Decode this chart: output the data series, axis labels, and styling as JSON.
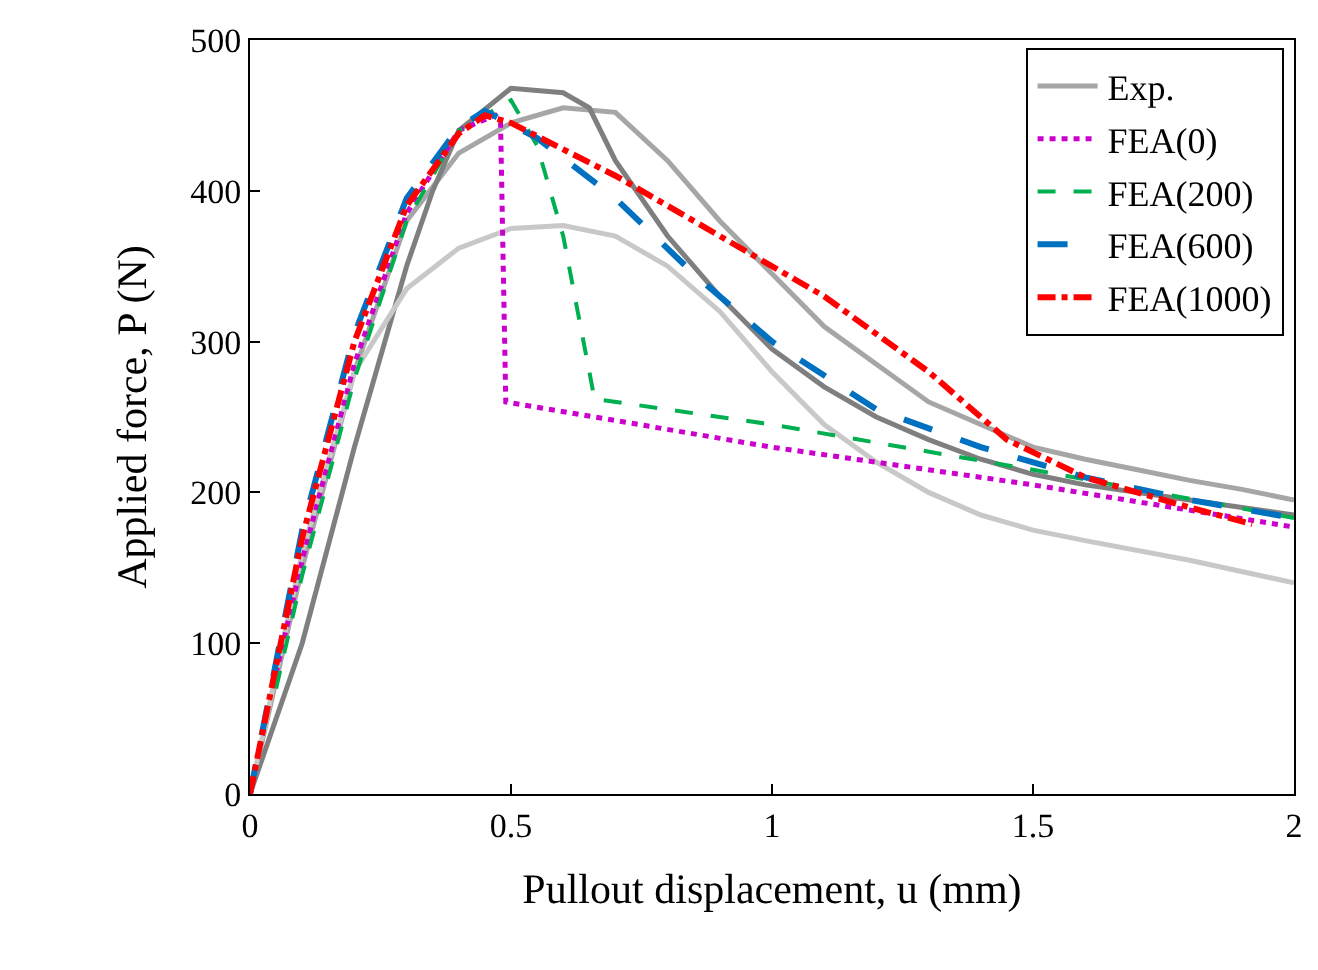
{
  "chart_data": {
    "type": "line",
    "xlabel": "Pullout displacement, u (mm)",
    "ylabel": "Applied force, P (N)",
    "xlim": [
      0,
      2
    ],
    "xticks": [
      0,
      0.5,
      1,
      1.5,
      2
    ],
    "ylim": [
      0,
      500
    ],
    "yticks": [
      0,
      100,
      200,
      300,
      400,
      500
    ],
    "legend": "top right",
    "series": [
      {
        "name": "Exp.",
        "color": "#a6a6a6",
        "line_style": "solid",
        "x": [
          0,
          0.1,
          0.2,
          0.3,
          0.4,
          0.5,
          0.6,
          0.7,
          0.8,
          0.9,
          1.0,
          1.1,
          1.2,
          1.3,
          1.4,
          1.5,
          1.6,
          1.7,
          1.8,
          1.9,
          2.0
        ],
        "values": [
          0,
          150,
          280,
          380,
          425,
          445,
          455,
          452,
          420,
          380,
          345,
          310,
          285,
          260,
          245,
          230,
          222,
          215,
          208,
          202,
          195
        ]
      },
      {
        "color": "#7f7f7f",
        "line_style": "solid",
        "x": [
          0,
          0.1,
          0.2,
          0.3,
          0.35,
          0.4,
          0.5,
          0.6,
          0.65,
          0.7,
          0.8,
          0.9,
          1.0,
          1.1,
          1.2,
          1.3,
          1.4,
          1.5,
          1.6,
          1.8,
          2.0
        ],
        "values": [
          0,
          100,
          230,
          350,
          400,
          440,
          468,
          465,
          455,
          420,
          370,
          330,
          295,
          270,
          250,
          235,
          222,
          212,
          205,
          195,
          185
        ]
      },
      {
        "color": "#c8c8c8",
        "line_style": "solid",
        "x": [
          0,
          0.1,
          0.2,
          0.3,
          0.4,
          0.5,
          0.6,
          0.7,
          0.8,
          0.9,
          1.0,
          1.1,
          1.2,
          1.3,
          1.4,
          1.5,
          1.6,
          1.8,
          2.0
        ],
        "values": [
          0,
          160,
          280,
          335,
          362,
          375,
          377,
          370,
          350,
          320,
          280,
          245,
          220,
          200,
          185,
          175,
          168,
          155,
          140
        ]
      },
      {
        "name": "FEA(0)",
        "color": "#cc00cc",
        "line_style": "dotted",
        "x": [
          0.05,
          0.1,
          0.2,
          0.3,
          0.4,
          0.47,
          0.48,
          0.49,
          1.0,
          1.5,
          2.0
        ],
        "values": [
          80,
          155,
          285,
          385,
          440,
          450,
          445,
          260,
          230,
          205,
          177
        ]
      },
      {
        "name": "FEA(200)",
        "color": "#00b050",
        "line_style": "dashed",
        "x": [
          0.05,
          0.1,
          0.2,
          0.3,
          0.4,
          0.5,
          0.55,
          0.6,
          0.66,
          1.0,
          1.5,
          2.0
        ],
        "values": [
          70,
          145,
          275,
          380,
          440,
          460,
          430,
          370,
          262,
          245,
          215,
          183
        ]
      },
      {
        "name": "FEA(600)",
        "color": "#0070c0",
        "line_style": "longdash",
        "x": [
          0,
          0.1,
          0.2,
          0.3,
          0.4,
          0.45,
          0.55,
          0.7,
          0.85,
          1.0,
          1.2,
          1.4,
          1.6,
          1.8,
          2.0
        ],
        "values": [
          0,
          175,
          305,
          395,
          442,
          453,
          435,
          395,
          345,
          300,
          255,
          230,
          210,
          195,
          183
        ]
      },
      {
        "name": "FEA(1000)",
        "color": "#ff0000",
        "line_style": "dashdot",
        "x": [
          0,
          0.1,
          0.2,
          0.3,
          0.4,
          0.45,
          0.5,
          0.7,
          0.9,
          1.1,
          1.3,
          1.45,
          1.6,
          1.8,
          1.92
        ],
        "values": [
          0,
          170,
          300,
          390,
          438,
          450,
          445,
          410,
          370,
          330,
          280,
          235,
          210,
          190,
          179
        ]
      }
    ]
  }
}
